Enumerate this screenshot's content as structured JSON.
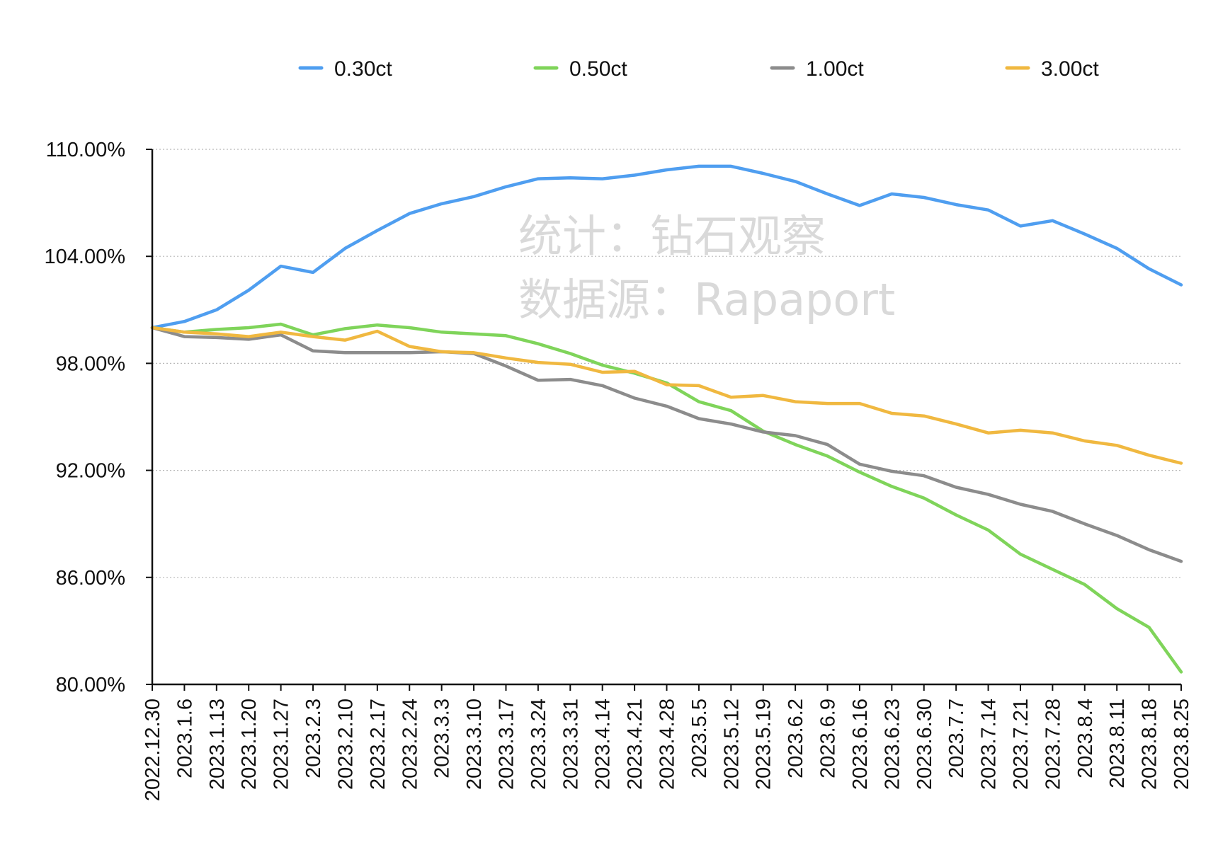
{
  "chart_data": {
    "type": "line",
    "title": "",
    "xlabel": "",
    "ylabel": "",
    "ylim": [
      80,
      110
    ],
    "yticks": [
      80,
      86,
      92,
      98,
      104,
      110
    ],
    "ytick_labels": [
      "80.00%",
      "86.00%",
      "92.00%",
      "98.00%",
      "104.00%",
      "110.00%"
    ],
    "grid": "horizontal-dotted",
    "legend_position": "top-center",
    "categories": [
      "2022.12.30",
      "2023.1.6",
      "2023.1.13",
      "2023.1.20",
      "2023.1.27",
      "2023.2.3",
      "2023.2.10",
      "2023.2.17",
      "2023.2.24",
      "2023.3.3",
      "2023.3.10",
      "2023.3.17",
      "2023.3.24",
      "2023.3.31",
      "2023.4.14",
      "2023.4.21",
      "2023.4.28",
      "2023.5.5",
      "2023.5.12",
      "2023.5.19",
      "2023.6.2",
      "2023.6.9",
      "2023.6.16",
      "2023.6.23",
      "2023.6.30",
      "2023.7.7",
      "2023.7.14",
      "2023.7.21",
      "2023.7.28",
      "2023.8.4",
      "2023.8.11",
      "2023.8.18",
      "2023.8.25"
    ],
    "series": [
      {
        "name": "0.30ct",
        "color": "#4f9ef0",
        "values": [
          100.0,
          100.35,
          101.0,
          102.1,
          103.45,
          103.1,
          104.45,
          105.45,
          106.4,
          106.95,
          107.35,
          107.9,
          108.35,
          108.4,
          108.35,
          108.55,
          108.85,
          109.05,
          109.05,
          108.65,
          108.2,
          107.5,
          106.85,
          107.5,
          107.3,
          106.9,
          106.6,
          105.7,
          106.0,
          105.25,
          104.45,
          103.3,
          102.4
        ]
      },
      {
        "name": "0.50ct",
        "color": "#7fd45a",
        "values": [
          100.0,
          99.75,
          99.9,
          100.0,
          100.2,
          99.6,
          99.95,
          100.15,
          100.0,
          99.75,
          99.65,
          99.55,
          99.1,
          98.55,
          97.9,
          97.45,
          96.9,
          95.85,
          95.35,
          94.2,
          93.45,
          92.8,
          91.9,
          91.1,
          90.45,
          89.5,
          88.65,
          87.3,
          86.45,
          85.6,
          84.25,
          83.2,
          80.7
        ]
      },
      {
        "name": "1.00ct",
        "color": "#8c8c8c",
        "values": [
          100.0,
          99.5,
          99.45,
          99.35,
          99.6,
          98.7,
          98.6,
          98.6,
          98.6,
          98.65,
          98.55,
          97.85,
          97.05,
          97.1,
          96.75,
          96.05,
          95.6,
          94.9,
          94.6,
          94.15,
          93.95,
          93.45,
          92.35,
          91.95,
          91.7,
          91.05,
          90.65,
          90.1,
          89.7,
          89.0,
          88.35,
          87.55,
          86.9
        ]
      },
      {
        "name": "3.00ct",
        "color": "#f0b840",
        "values": [
          100.0,
          99.75,
          99.65,
          99.5,
          99.75,
          99.5,
          99.3,
          99.8,
          98.95,
          98.65,
          98.6,
          98.3,
          98.05,
          97.95,
          97.5,
          97.55,
          96.8,
          96.75,
          96.1,
          96.2,
          95.85,
          95.75,
          95.75,
          95.2,
          95.05,
          94.6,
          94.1,
          94.25,
          94.1,
          93.65,
          93.4,
          92.85,
          92.4
        ]
      }
    ],
    "annotations": [
      "统计：钻石观察",
      "数据源：Rapaport"
    ]
  }
}
